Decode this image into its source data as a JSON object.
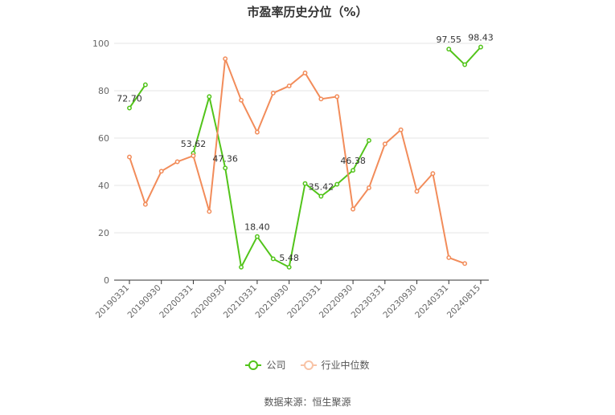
{
  "chart_data": {
    "type": "line",
    "title": "市盈率历史分位（%）",
    "source": "数据来源：恒生聚源",
    "ylim": [
      0,
      100
    ],
    "yticks": [
      0,
      20,
      40,
      60,
      80,
      100
    ],
    "grid": true,
    "legend_position": "bottom",
    "x": [
      "20190331",
      "20190630",
      "20190930",
      "20191231",
      "20200331",
      "20200630",
      "20200930",
      "20201231",
      "20210331",
      "20210630",
      "20210930",
      "20211231",
      "20220331",
      "20220630",
      "20220930",
      "20221231",
      "20230331",
      "20230630",
      "20230930",
      "20231231",
      "20240331",
      "20240630",
      "20240815"
    ],
    "xtick_labels": [
      "20190331",
      "20190930",
      "20200331",
      "20200930",
      "20210331",
      "20210930",
      "20220331",
      "20220930",
      "20230331",
      "20230930",
      "20240331",
      "20240815"
    ],
    "series": [
      {
        "name": "公司",
        "color": "#52c41a",
        "values": [
          72.7,
          82.5,
          null,
          null,
          53.62,
          77.5,
          47.36,
          5.5,
          18.4,
          9.0,
          5.48,
          40.8,
          35.42,
          40.5,
          46.38,
          59.0,
          null,
          null,
          null,
          null,
          97.55,
          91.0,
          98.43
        ],
        "data_labels": [
          {
            "index": 0,
            "text": "72.70"
          },
          {
            "index": 4,
            "text": "53.62"
          },
          {
            "index": 6,
            "text": "47.36"
          },
          {
            "index": 8,
            "text": "18.40"
          },
          {
            "index": 10,
            "text": "5.48"
          },
          {
            "index": 12,
            "text": "35.42"
          },
          {
            "index": 14,
            "text": "46.38"
          },
          {
            "index": 20,
            "text": "97.55"
          },
          {
            "index": 22,
            "text": "98.43"
          }
        ]
      },
      {
        "name": "行业中位数",
        "color": "#f28c5a",
        "values": [
          52.0,
          32.0,
          46.0,
          50.0,
          52.5,
          29.0,
          93.5,
          76.0,
          62.5,
          79.0,
          82.0,
          87.5,
          76.5,
          77.5,
          30.0,
          39.0,
          57.5,
          63.5,
          37.5,
          45.0,
          9.5,
          7.0,
          null
        ]
      }
    ]
  }
}
